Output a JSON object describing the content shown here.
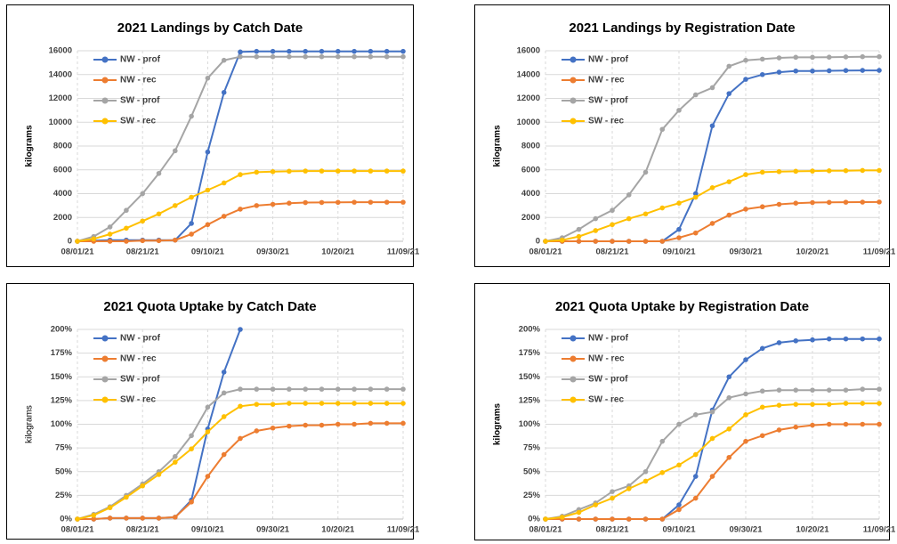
{
  "chart_data": [
    {
      "type": "line",
      "title": "2021 Landings by Catch Date",
      "y_label": "kilograms",
      "x": [
        "08/01/21",
        "08/06/21",
        "08/11/21",
        "08/16/21",
        "08/21/21",
        "08/26/21",
        "08/31/21",
        "09/05/21",
        "09/10/21",
        "09/15/21",
        "09/20/21",
        "09/25/21",
        "09/30/21",
        "10/05/21",
        "10/10/21",
        "10/15/21",
        "10/20/21",
        "10/25/21",
        "10/30/21",
        "11/04/21",
        "11/09/21"
      ],
      "xlim": [
        "08/01/21",
        "11/09/21"
      ],
      "xticks": [
        "08/01/21",
        "08/21/21",
        "09/10/21",
        "09/30/21",
        "10/20/21",
        "11/09/21"
      ],
      "ylim": [
        0,
        16000
      ],
      "yticks": [
        0,
        2000,
        4000,
        6000,
        8000,
        10000,
        12000,
        14000,
        16000
      ],
      "grid": true,
      "legend": "upper left",
      "series": [
        {
          "name": "NW - prof",
          "color": "#4472c4",
          "values": [
            0,
            50,
            100,
            100,
            100,
            100,
            100,
            1500,
            7500,
            12500,
            15900,
            15950,
            15950,
            15950,
            15950,
            15950,
            15950,
            15950,
            15950,
            15950,
            15950
          ]
        },
        {
          "name": "NW - rec",
          "color": "#ed7d31",
          "values": [
            0,
            0,
            0,
            0,
            50,
            50,
            100,
            600,
            1400,
            2100,
            2700,
            3000,
            3100,
            3200,
            3250,
            3260,
            3270,
            3280,
            3280,
            3280,
            3280
          ]
        },
        {
          "name": "SW - prof",
          "color": "#a5a5a5",
          "values": [
            0,
            400,
            1200,
            2600,
            4000,
            5700,
            7600,
            10500,
            13700,
            15200,
            15500,
            15500,
            15500,
            15500,
            15500,
            15500,
            15500,
            15500,
            15500,
            15500,
            15500
          ]
        },
        {
          "name": "SW - rec",
          "color": "#ffc000",
          "values": [
            0,
            200,
            600,
            1100,
            1700,
            2300,
            3000,
            3700,
            4300,
            4900,
            5600,
            5800,
            5850,
            5880,
            5900,
            5900,
            5900,
            5900,
            5900,
            5900,
            5900
          ]
        }
      ]
    },
    {
      "type": "line",
      "title": "2021 Landings by Registration Date",
      "y_label": "kilograms",
      "x": [
        "08/01/21",
        "08/06/21",
        "08/11/21",
        "08/16/21",
        "08/21/21",
        "08/26/21",
        "08/31/21",
        "09/05/21",
        "09/10/21",
        "09/15/21",
        "09/20/21",
        "09/25/21",
        "09/30/21",
        "10/05/21",
        "10/10/21",
        "10/15/21",
        "10/20/21",
        "10/25/21",
        "10/30/21",
        "11/04/21",
        "11/09/21"
      ],
      "xlim": [
        "08/01/21",
        "11/09/21"
      ],
      "xticks": [
        "08/01/21",
        "08/21/21",
        "09/10/21",
        "09/30/21",
        "10/20/21",
        "11/09/21"
      ],
      "ylim": [
        0,
        16000
      ],
      "yticks": [
        0,
        2000,
        4000,
        6000,
        8000,
        10000,
        12000,
        14000,
        16000
      ],
      "grid": true,
      "legend": "upper left",
      "series": [
        {
          "name": "NW - prof",
          "color": "#4472c4",
          "values": [
            0,
            0,
            0,
            0,
            0,
            0,
            0,
            0,
            1000,
            4000,
            9700,
            12400,
            13600,
            14000,
            14200,
            14300,
            14300,
            14320,
            14340,
            14350,
            14350
          ]
        },
        {
          "name": "NW - rec",
          "color": "#ed7d31",
          "values": [
            0,
            0,
            0,
            0,
            0,
            0,
            0,
            0,
            300,
            700,
            1500,
            2200,
            2700,
            2900,
            3100,
            3200,
            3250,
            3270,
            3280,
            3290,
            3300
          ]
        },
        {
          "name": "SW - prof",
          "color": "#a5a5a5",
          "values": [
            0,
            300,
            1000,
            1900,
            2600,
            3900,
            5800,
            9400,
            11000,
            12300,
            12900,
            14700,
            15200,
            15300,
            15400,
            15450,
            15450,
            15460,
            15480,
            15500,
            15500
          ]
        },
        {
          "name": "SW - rec",
          "color": "#ffc000",
          "values": [
            0,
            100,
            400,
            900,
            1400,
            1900,
            2300,
            2800,
            3200,
            3700,
            4500,
            5000,
            5600,
            5800,
            5850,
            5880,
            5900,
            5920,
            5930,
            5950,
            5950
          ]
        }
      ]
    },
    {
      "type": "line",
      "title": "2021 Quota Uptake by Catch Date",
      "y_label": "kilograms",
      "x": [
        "08/01/21",
        "08/06/21",
        "08/11/21",
        "08/16/21",
        "08/21/21",
        "08/26/21",
        "08/31/21",
        "09/05/21",
        "09/10/21",
        "09/15/21",
        "09/20/21",
        "09/25/21",
        "09/30/21",
        "10/05/21",
        "10/10/21",
        "10/15/21",
        "10/20/21",
        "10/25/21",
        "10/30/21",
        "11/04/21",
        "11/09/21"
      ],
      "xlim": [
        "08/01/21",
        "11/09/21"
      ],
      "xticks": [
        "08/01/21",
        "08/21/21",
        "09/10/21",
        "09/30/21",
        "10/20/21",
        "11/09/21"
      ],
      "ylim": [
        0,
        200
      ],
      "yticks": [
        {
          "value": 0,
          "label": "0%"
        },
        {
          "value": 25,
          "label": "25%"
        },
        {
          "value": 50,
          "label": "50%"
        },
        {
          "value": 75,
          "label": "75%"
        },
        {
          "value": 100,
          "label": "100%"
        },
        {
          "value": 125,
          "label": "125%"
        },
        {
          "value": 150,
          "label": "150%"
        },
        {
          "value": 175,
          "label": "175%"
        },
        {
          "value": 200,
          "label": "200%"
        }
      ],
      "grid": true,
      "legend": "upper left",
      "series": [
        {
          "name": "NW - prof",
          "color": "#4472c4",
          "values": [
            0,
            0,
            1,
            1,
            1,
            1,
            2,
            20,
            95,
            155,
            200,
            null,
            null,
            null,
            null,
            null,
            null,
            null,
            null,
            null,
            null
          ]
        },
        {
          "name": "NW - rec",
          "color": "#ed7d31",
          "values": [
            0,
            0,
            1,
            1,
            1,
            1,
            2,
            18,
            45,
            68,
            85,
            93,
            96,
            98,
            99,
            99,
            100,
            100,
            101,
            101,
            101
          ]
        },
        {
          "name": "SW - prof",
          "color": "#a5a5a5",
          "values": [
            0,
            5,
            13,
            25,
            37,
            50,
            66,
            88,
            118,
            133,
            137,
            137,
            137,
            137,
            137,
            137,
            137,
            137,
            137,
            137,
            137
          ]
        },
        {
          "name": "SW - rec",
          "color": "#ffc000",
          "values": [
            0,
            4,
            12,
            23,
            35,
            47,
            60,
            74,
            92,
            108,
            119,
            121,
            121,
            122,
            122,
            122,
            122,
            122,
            122,
            122,
            122
          ]
        }
      ]
    },
    {
      "type": "line",
      "title": "2021 Quota Uptake by Registration Date",
      "y_label": "kilograms",
      "x": [
        "08/01/21",
        "08/06/21",
        "08/11/21",
        "08/16/21",
        "08/21/21",
        "08/26/21",
        "08/31/21",
        "09/05/21",
        "09/10/21",
        "09/15/21",
        "09/20/21",
        "09/25/21",
        "09/30/21",
        "10/05/21",
        "10/10/21",
        "10/15/21",
        "10/20/21",
        "10/25/21",
        "10/30/21",
        "11/04/21",
        "11/09/21"
      ],
      "xlim": [
        "08/01/21",
        "11/09/21"
      ],
      "xticks": [
        "08/01/21",
        "08/21/21",
        "09/10/21",
        "09/30/21",
        "10/20/21",
        "11/09/21"
      ],
      "ylim": [
        0,
        200
      ],
      "yticks": [
        {
          "value": 0,
          "label": "0%"
        },
        {
          "value": 25,
          "label": "25%"
        },
        {
          "value": 50,
          "label": "50%"
        },
        {
          "value": 75,
          "label": "75%"
        },
        {
          "value": 100,
          "label": "100%"
        },
        {
          "value": 125,
          "label": "125%"
        },
        {
          "value": 150,
          "label": "150%"
        },
        {
          "value": 175,
          "label": "175%"
        },
        {
          "value": 200,
          "label": "200%"
        }
      ],
      "grid": true,
      "legend": "upper left",
      "series": [
        {
          "name": "NW - prof",
          "color": "#4472c4",
          "values": [
            0,
            0,
            0,
            0,
            0,
            0,
            0,
            0,
            15,
            45,
            115,
            150,
            168,
            180,
            186,
            188,
            189,
            190,
            190,
            190,
            190
          ]
        },
        {
          "name": "NW - rec",
          "color": "#ed7d31",
          "values": [
            0,
            0,
            0,
            0,
            0,
            0,
            0,
            0,
            10,
            22,
            45,
            65,
            82,
            88,
            94,
            97,
            99,
            100,
            100,
            100,
            100
          ]
        },
        {
          "name": "SW - prof",
          "color": "#a5a5a5",
          "values": [
            0,
            3,
            10,
            17,
            29,
            35,
            50,
            82,
            100,
            110,
            113,
            128,
            132,
            135,
            136,
            136,
            136,
            136,
            136,
            137,
            137
          ]
        },
        {
          "name": "SW - rec",
          "color": "#ffc000",
          "values": [
            0,
            2,
            7,
            15,
            22,
            32,
            40,
            49,
            57,
            68,
            85,
            95,
            110,
            118,
            120,
            121,
            121,
            121,
            122,
            122,
            122
          ]
        }
      ]
    }
  ]
}
